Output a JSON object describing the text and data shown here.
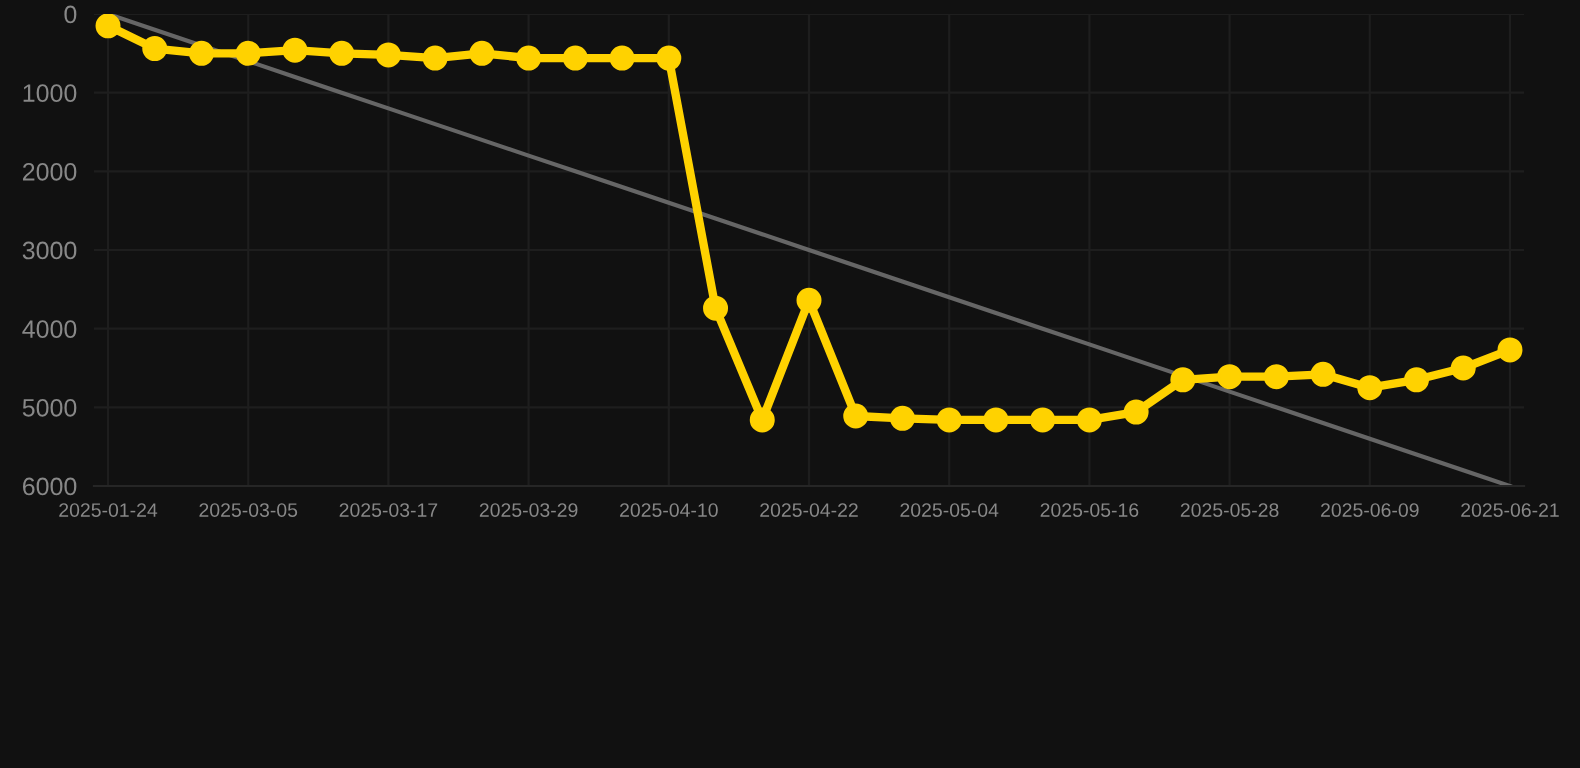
{
  "chart_data": {
    "type": "line",
    "categories": [
      "2025-01-24",
      null,
      null,
      "2025-03-05",
      null,
      null,
      "2025-03-17",
      null,
      null,
      "2025-03-29",
      null,
      null,
      "2025-04-10",
      null,
      null,
      "2025-04-22",
      null,
      null,
      "2025-05-04",
      null,
      null,
      "2025-05-16",
      null,
      null,
      "2025-05-28",
      null,
      null,
      "2025-06-09",
      null,
      null,
      "2025-06-21"
    ],
    "series": [
      {
        "color": "#ffd200",
        "marker": "circle",
        "values": [
          150,
          440,
          500,
          500,
          460,
          500,
          520,
          560,
          500,
          560,
          560,
          560,
          560,
          3740,
          5160,
          3640,
          5110,
          5140,
          5160,
          5160,
          5160,
          5160,
          5060,
          4650,
          4610,
          4610,
          4580,
          4750,
          4650,
          4500,
          4270
        ]
      },
      {
        "color": "#666666",
        "marker": "none",
        "values": [
          0,
          200,
          400,
          600,
          800,
          1000,
          1200,
          1400,
          1600,
          1800,
          2000,
          2200,
          2400,
          2600,
          2800,
          3000,
          3200,
          3400,
          3600,
          3800,
          4000,
          4200,
          4400,
          4600,
          4800,
          5000,
          5200,
          5400,
          5600,
          5800,
          6000
        ]
      }
    ],
    "ylim": [
      6000,
      0
    ],
    "yticks": [
      0,
      1000,
      2000,
      3000,
      4000,
      5000,
      6000
    ],
    "grid": true,
    "line_style": "solid"
  }
}
